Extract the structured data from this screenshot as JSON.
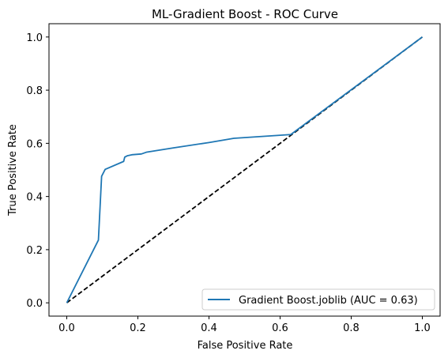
{
  "chart_data": {
    "type": "line",
    "title": "ML-Gradient Boost - ROC Curve",
    "xlabel": "False Positive Rate",
    "ylabel": "True Positive Rate",
    "xlim": [
      -0.05,
      1.05
    ],
    "ylim": [
      -0.05,
      1.05
    ],
    "xticks": [
      0.0,
      0.2,
      0.4,
      0.6,
      0.8,
      1.0
    ],
    "yticks": [
      0.0,
      0.2,
      0.4,
      0.6,
      0.8,
      1.0
    ],
    "xtick_labels": [
      "0.0",
      "0.2",
      "0.4",
      "0.6",
      "0.8",
      "1.0"
    ],
    "ytick_labels": [
      "0.0",
      "0.2",
      "0.4",
      "0.6",
      "0.8",
      "1.0"
    ],
    "grid": false,
    "legend_position": "lower-right",
    "series": [
      {
        "name": "Gradient Boost.joblib (AUC = 0.63)",
        "color": "#1f77b4",
        "style": "solid",
        "x": [
          0.0,
          0.089,
          0.098,
          0.108,
          0.16,
          0.163,
          0.17,
          0.183,
          0.21,
          0.225,
          0.3,
          0.4,
          0.47,
          0.63,
          1.0
        ],
        "y": [
          0.0,
          0.236,
          0.476,
          0.502,
          0.532,
          0.548,
          0.553,
          0.557,
          0.56,
          0.567,
          0.583,
          0.603,
          0.619,
          0.633,
          1.0
        ]
      },
      {
        "color": "#000000",
        "style": "dashed",
        "x": [
          0.0,
          1.0
        ],
        "y": [
          0.0,
          1.0
        ]
      }
    ]
  }
}
